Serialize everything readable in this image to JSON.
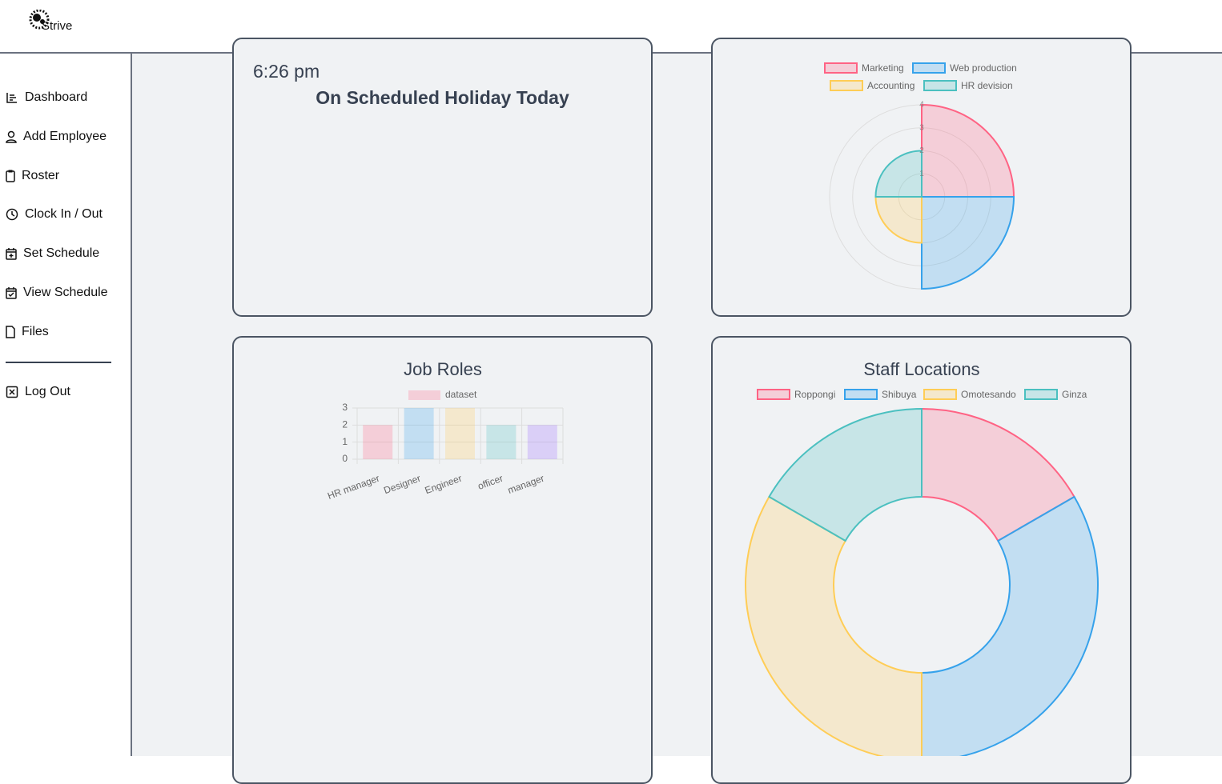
{
  "header": {
    "logo_text": "Strive"
  },
  "sidebar": {
    "items": [
      "Dashboard",
      "Add Employee",
      "Roster",
      "Clock In / Out",
      "Set Schedule",
      "View Schedule",
      "Files"
    ],
    "logout": "Log Out"
  },
  "clock": {
    "time": "6:26 pm",
    "status": "On Scheduled Holiday Today"
  },
  "chart_data": [
    {
      "type": "polar",
      "categories": [
        "Marketing",
        "Web production",
        "Accounting",
        "HR devision"
      ],
      "values": [
        4,
        4,
        2,
        2
      ],
      "colors": [
        "#ff6384",
        "#36a2eb",
        "#ffcd56",
        "#4bc0c0"
      ],
      "rlim": [
        0,
        4
      ],
      "rticks": [
        1,
        2,
        3,
        4
      ]
    },
    {
      "type": "bar",
      "title": "Job Roles",
      "series": [
        {
          "name": "dataset",
          "values": [
            2,
            3,
            3,
            2,
            2
          ]
        }
      ],
      "categories": [
        "HR manager",
        "Designer",
        "Engineer",
        "officer",
        "manager"
      ],
      "colors": [
        "#ff6384",
        "#36a2eb",
        "#ffcd56",
        "#4bc0c0",
        "#9966ff"
      ],
      "ylim": [
        0,
        3
      ],
      "yticks": [
        0,
        1,
        2,
        3
      ],
      "grid": true
    },
    {
      "type": "doughnut",
      "title": "Staff Locations",
      "categories": [
        "Roppongi",
        "Shibuya",
        "Omotesando",
        "Ginza"
      ],
      "values": [
        1,
        2,
        2,
        1
      ],
      "colors": [
        "#ff6384",
        "#36a2eb",
        "#ffcd56",
        "#4bc0c0"
      ]
    }
  ]
}
